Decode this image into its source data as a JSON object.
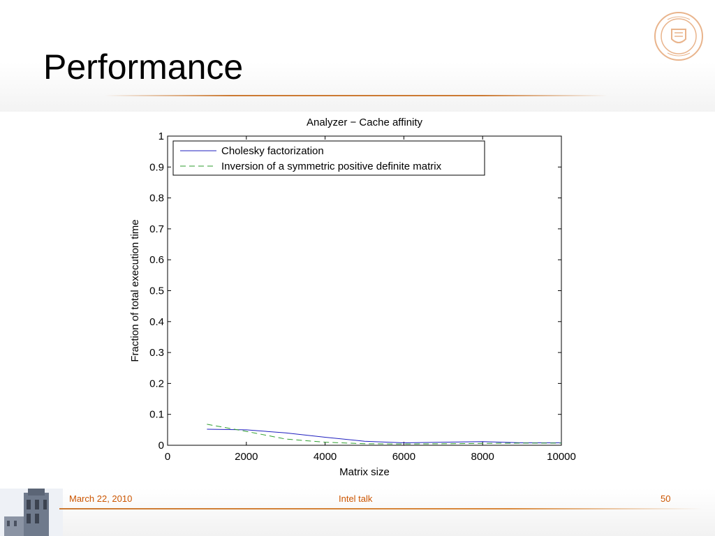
{
  "slide": {
    "title": "Performance",
    "footer": {
      "date": "March 22, 2010",
      "center": "Intel talk",
      "page": "50"
    },
    "colors": {
      "accent": "#cc5500",
      "rule": "#cc7a33"
    },
    "icons": {
      "seal": "university-seal-icon",
      "tower": "tower-image"
    }
  },
  "chart_data": {
    "type": "line",
    "title": "Analyzer − Cache affinity",
    "xlabel": "Matrix size",
    "ylabel": "Fraction of total execution time",
    "xlim": [
      0,
      10000
    ],
    "ylim": [
      0,
      1
    ],
    "xticks": [
      0,
      2000,
      4000,
      6000,
      8000,
      10000
    ],
    "yticks": [
      0,
      0.1,
      0.2,
      0.3,
      0.4,
      0.5,
      0.6,
      0.7,
      0.8,
      0.9,
      1
    ],
    "ytick_labels": [
      "0",
      "0.1",
      "0.2",
      "0.3",
      "0.4",
      "0.5",
      "0.6",
      "0.7",
      "0.8",
      "0.9",
      "1"
    ],
    "grid": false,
    "legend_position": "top-left",
    "series": [
      {
        "name": "Cholesky factorization",
        "color": "#1f1fbf",
        "dash": "solid",
        "x": [
          1000,
          2000,
          3000,
          4000,
          5000,
          6000,
          7000,
          8000,
          9000,
          10000
        ],
        "y": [
          0.052,
          0.05,
          0.04,
          0.026,
          0.013,
          0.008,
          0.01,
          0.012,
          0.008,
          0.008
        ]
      },
      {
        "name": "Inversion of a symmetric positive definite matrix",
        "color": "#2e9e2e",
        "dash": "dashed",
        "x": [
          1000,
          2000,
          3000,
          4000,
          5000,
          6000,
          7000,
          8000,
          9000,
          10000
        ],
        "y": [
          0.068,
          0.045,
          0.02,
          0.01,
          0.005,
          0.004,
          0.005,
          0.006,
          0.007,
          0.007
        ]
      }
    ]
  }
}
